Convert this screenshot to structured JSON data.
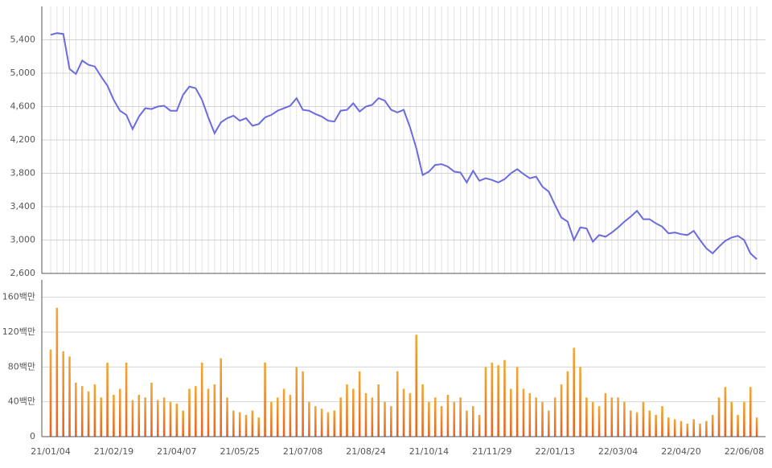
{
  "chart_data": [
    {
      "type": "line",
      "color": "#6b6bde",
      "values": [
        5460,
        5480,
        5470,
        5050,
        4990,
        5150,
        5100,
        5080,
        4960,
        4850,
        4680,
        4550,
        4500,
        4330,
        4480,
        4580,
        4570,
        4600,
        4610,
        4550,
        4550,
        4740,
        4840,
        4820,
        4680,
        4470,
        4280,
        4410,
        4460,
        4490,
        4430,
        4460,
        4370,
        4390,
        4470,
        4500,
        4550,
        4580,
        4610,
        4700,
        4560,
        4550,
        4510,
        4480,
        4430,
        4420,
        4550,
        4560,
        4640,
        4540,
        4600,
        4620,
        4700,
        4670,
        4560,
        4530,
        4560,
        4350,
        4100,
        3780,
        3820,
        3900,
        3910,
        3880,
        3820,
        3810,
        3690,
        3830,
        3710,
        3740,
        3720,
        3690,
        3730,
        3800,
        3850,
        3790,
        3740,
        3760,
        3640,
        3580,
        3420,
        3270,
        3220,
        3000,
        3150,
        3140,
        2980,
        3060,
        3040,
        3090,
        3150,
        3220,
        3280,
        3350,
        3250,
        3250,
        3200,
        3160,
        3080,
        3090,
        3070,
        3060,
        3110,
        3000,
        2900,
        2840,
        2920,
        2990,
        3030,
        3050,
        3000,
        2840,
        2770
      ],
      "ylim": [
        2600,
        5800
      ],
      "yticks": [
        {
          "value": 2600,
          "label": "2,600"
        },
        {
          "value": 3000,
          "label": "3,000"
        },
        {
          "value": 3400,
          "label": "3,400"
        },
        {
          "value": 3800,
          "label": "3,800"
        },
        {
          "value": 4200,
          "label": "4,200"
        },
        {
          "value": 4600,
          "label": "4,600"
        },
        {
          "value": 5000,
          "label": "5,000"
        },
        {
          "value": 5400,
          "label": "5,400"
        }
      ],
      "grid": true
    },
    {
      "type": "bar",
      "categories": [
        "21/01/04",
        null,
        null,
        null,
        null,
        null,
        null,
        null,
        null,
        null,
        "21/02/19",
        null,
        null,
        null,
        null,
        null,
        null,
        null,
        null,
        null,
        "21/04/07",
        null,
        null,
        null,
        null,
        null,
        null,
        null,
        null,
        null,
        "21/05/25",
        null,
        null,
        null,
        null,
        null,
        null,
        null,
        null,
        null,
        "21/07/08",
        null,
        null,
        null,
        null,
        null,
        null,
        null,
        null,
        null,
        "21/08/24",
        null,
        null,
        null,
        null,
        null,
        null,
        null,
        null,
        null,
        "21/10/14",
        null,
        null,
        null,
        null,
        null,
        null,
        null,
        null,
        null,
        "21/11/29",
        null,
        null,
        null,
        null,
        null,
        null,
        null,
        null,
        null,
        "22/01/13",
        null,
        null,
        null,
        null,
        null,
        null,
        null,
        null,
        null,
        "22/03/04",
        null,
        null,
        null,
        null,
        null,
        null,
        null,
        null,
        null,
        "22/04/20",
        null,
        null,
        null,
        null,
        null,
        null,
        null,
        null,
        null,
        "22/06/08",
        null,
        null
      ],
      "values": [
        100,
        148,
        98,
        92,
        62,
        58,
        52,
        60,
        45,
        85,
        48,
        55,
        85,
        42,
        48,
        45,
        62,
        42,
        45,
        40,
        38,
        30,
        55,
        58,
        85,
        55,
        60,
        90,
        45,
        30,
        28,
        25,
        30,
        22,
        85,
        40,
        45,
        55,
        48,
        80,
        75,
        40,
        35,
        32,
        28,
        30,
        45,
        60,
        55,
        75,
        50,
        45,
        60,
        40,
        35,
        75,
        55,
        50,
        117,
        60,
        40,
        45,
        35,
        48,
        40,
        45,
        30,
        35,
        25,
        80,
        85,
        82,
        88,
        55,
        80,
        55,
        50,
        45,
        40,
        30,
        45,
        60,
        75,
        102,
        80,
        45,
        40,
        35,
        50,
        45,
        45,
        40,
        30,
        28,
        40,
        30,
        25,
        35,
        22,
        20,
        18,
        15,
        20,
        15,
        18,
        25,
        45,
        57,
        40,
        25,
        40,
        57,
        22
      ],
      "color": "#ef8a2a",
      "ylim": [
        0,
        180
      ],
      "yticks": [
        0,
        {
          "value": 40,
          "label": "40백만"
        },
        {
          "value": 80,
          "label": "80백만"
        },
        {
          "value": 120,
          "label": "120백만"
        },
        {
          "value": 160,
          "label": "160백만"
        }
      ],
      "grid": true
    }
  ]
}
